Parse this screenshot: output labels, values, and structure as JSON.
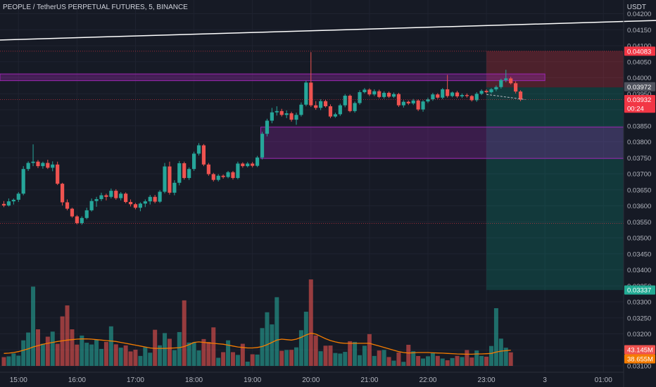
{
  "header": {
    "title": "PEOPLE / TetherUS PERPETUAL FUTURES, 5, BINANCE",
    "currency": "USDT"
  },
  "colors": {
    "background": "#161a25",
    "up": "#26a69a",
    "down": "#ef5350",
    "volume_ma": "#f57c00",
    "zone_purple": "#9c27b0",
    "trendline": "#ffffff",
    "stop_zone": "#f23645",
    "target_zone": "#089981"
  },
  "chart_data": {
    "type": "candlestick",
    "x_axis": {
      "ticks": [
        {
          "label": "15:00",
          "index": 3.0
        },
        {
          "label": "16:00",
          "index": 15.0
        },
        {
          "label": "17:00",
          "index": 27.0
        },
        {
          "label": "18:00",
          "index": 39.0
        },
        {
          "label": "19:00",
          "index": 51.0
        },
        {
          "label": "20:00",
          "index": 63.0
        },
        {
          "label": "21:00",
          "index": 75.0
        },
        {
          "label": "22:00",
          "index": 87.0
        },
        {
          "label": "23:00",
          "index": 99.0
        },
        {
          "label": "3",
          "index": 111.0
        },
        {
          "label": "01:00",
          "index": 123.0
        }
      ]
    },
    "y_axis": {
      "range": [
        0.031,
        0.0421
      ],
      "ticks": [
        "0.04200",
        "0.04150",
        "0.04100",
        "0.04050",
        "0.04000",
        "0.03950",
        "0.03900",
        "0.03850",
        "0.03800",
        "0.03750",
        "0.03700",
        "0.03650",
        "0.03600",
        "0.03550",
        "0.03500",
        "0.03450",
        "0.03400",
        "0.03350",
        "0.03300",
        "0.03250",
        "0.03200",
        "0.03150",
        "0.03100"
      ]
    },
    "candles": [
      {
        "o": 0.03606,
        "h": 0.03615,
        "l": 0.03596,
        "c": 0.03601
      },
      {
        "o": 0.03601,
        "h": 0.03623,
        "l": 0.03598,
        "c": 0.03614
      },
      {
        "o": 0.03614,
        "h": 0.03623,
        "l": 0.03604,
        "c": 0.03619
      },
      {
        "o": 0.03619,
        "h": 0.03643,
        "l": 0.03612,
        "c": 0.03638
      },
      {
        "o": 0.03638,
        "h": 0.03724,
        "l": 0.03633,
        "c": 0.03715
      },
      {
        "o": 0.03715,
        "h": 0.03739,
        "l": 0.03709,
        "c": 0.03734
      },
      {
        "o": 0.03734,
        "h": 0.03792,
        "l": 0.03724,
        "c": 0.03738
      },
      {
        "o": 0.03738,
        "h": 0.03743,
        "l": 0.03718,
        "c": 0.03724
      },
      {
        "o": 0.03724,
        "h": 0.03738,
        "l": 0.03716,
        "c": 0.03734
      },
      {
        "o": 0.03734,
        "h": 0.03744,
        "l": 0.03715,
        "c": 0.03719
      },
      {
        "o": 0.03719,
        "h": 0.03739,
        "l": 0.03708,
        "c": 0.03729
      },
      {
        "o": 0.03729,
        "h": 0.03738,
        "l": 0.03665,
        "c": 0.03669
      },
      {
        "o": 0.03669,
        "h": 0.03672,
        "l": 0.03601,
        "c": 0.03611
      },
      {
        "o": 0.03611,
        "h": 0.0362,
        "l": 0.03586,
        "c": 0.03591
      },
      {
        "o": 0.03591,
        "h": 0.03594,
        "l": 0.03563,
        "c": 0.03567
      },
      {
        "o": 0.03567,
        "h": 0.03571,
        "l": 0.03542,
        "c": 0.03546
      },
      {
        "o": 0.03546,
        "h": 0.03567,
        "l": 0.03541,
        "c": 0.03562
      },
      {
        "o": 0.03562,
        "h": 0.03594,
        "l": 0.03558,
        "c": 0.03586
      },
      {
        "o": 0.03586,
        "h": 0.03623,
        "l": 0.03582,
        "c": 0.03615
      },
      {
        "o": 0.03615,
        "h": 0.03628,
        "l": 0.03597,
        "c": 0.03621
      },
      {
        "o": 0.03621,
        "h": 0.03641,
        "l": 0.03615,
        "c": 0.03633
      },
      {
        "o": 0.03633,
        "h": 0.03638,
        "l": 0.03617,
        "c": 0.03628
      },
      {
        "o": 0.03628,
        "h": 0.03654,
        "l": 0.03623,
        "c": 0.03647
      },
      {
        "o": 0.03647,
        "h": 0.03652,
        "l": 0.03619,
        "c": 0.03624
      },
      {
        "o": 0.03624,
        "h": 0.03643,
        "l": 0.03617,
        "c": 0.03638
      },
      {
        "o": 0.03638,
        "h": 0.03642,
        "l": 0.03608,
        "c": 0.03612
      },
      {
        "o": 0.03612,
        "h": 0.0362,
        "l": 0.03598,
        "c": 0.03605
      },
      {
        "o": 0.03605,
        "h": 0.03609,
        "l": 0.03589,
        "c": 0.03594
      },
      {
        "o": 0.03594,
        "h": 0.03611,
        "l": 0.03583,
        "c": 0.03607
      },
      {
        "o": 0.03607,
        "h": 0.0362,
        "l": 0.03596,
        "c": 0.03614
      },
      {
        "o": 0.03614,
        "h": 0.03634,
        "l": 0.03604,
        "c": 0.03628
      },
      {
        "o": 0.03628,
        "h": 0.03634,
        "l": 0.03608,
        "c": 0.03613
      },
      {
        "o": 0.03613,
        "h": 0.03649,
        "l": 0.03609,
        "c": 0.03644
      },
      {
        "o": 0.03644,
        "h": 0.03734,
        "l": 0.03639,
        "c": 0.03723
      },
      {
        "o": 0.03723,
        "h": 0.03738,
        "l": 0.03635,
        "c": 0.03641
      },
      {
        "o": 0.03641,
        "h": 0.0368,
        "l": 0.03633,
        "c": 0.03672
      },
      {
        "o": 0.03672,
        "h": 0.0374,
        "l": 0.03664,
        "c": 0.03733
      },
      {
        "o": 0.03733,
        "h": 0.03738,
        "l": 0.03682,
        "c": 0.03687
      },
      {
        "o": 0.03687,
        "h": 0.0372,
        "l": 0.03681,
        "c": 0.03715
      },
      {
        "o": 0.03715,
        "h": 0.03769,
        "l": 0.03709,
        "c": 0.03763
      },
      {
        "o": 0.03763,
        "h": 0.03796,
        "l": 0.03757,
        "c": 0.03789
      },
      {
        "o": 0.03789,
        "h": 0.03793,
        "l": 0.03724,
        "c": 0.03729
      },
      {
        "o": 0.03729,
        "h": 0.03734,
        "l": 0.03694,
        "c": 0.03699
      },
      {
        "o": 0.03699,
        "h": 0.03703,
        "l": 0.03676,
        "c": 0.03681
      },
      {
        "o": 0.03681,
        "h": 0.03699,
        "l": 0.03676,
        "c": 0.03694
      },
      {
        "o": 0.03694,
        "h": 0.03698,
        "l": 0.03685,
        "c": 0.0369
      },
      {
        "o": 0.0369,
        "h": 0.03709,
        "l": 0.03686,
        "c": 0.03705
      },
      {
        "o": 0.03705,
        "h": 0.03709,
        "l": 0.03682,
        "c": 0.03687
      },
      {
        "o": 0.03687,
        "h": 0.03738,
        "l": 0.03683,
        "c": 0.03732
      },
      {
        "o": 0.03732,
        "h": 0.03736,
        "l": 0.03719,
        "c": 0.03724
      },
      {
        "o": 0.03724,
        "h": 0.03737,
        "l": 0.0372,
        "c": 0.03732
      },
      {
        "o": 0.03732,
        "h": 0.03737,
        "l": 0.0372,
        "c": 0.03725
      },
      {
        "o": 0.03725,
        "h": 0.03756,
        "l": 0.03721,
        "c": 0.03751
      },
      {
        "o": 0.03751,
        "h": 0.03831,
        "l": 0.03745,
        "c": 0.03825
      },
      {
        "o": 0.03825,
        "h": 0.03872,
        "l": 0.03817,
        "c": 0.03866
      },
      {
        "o": 0.03866,
        "h": 0.03906,
        "l": 0.03858,
        "c": 0.03892
      },
      {
        "o": 0.03892,
        "h": 0.03911,
        "l": 0.03882,
        "c": 0.03896
      },
      {
        "o": 0.03896,
        "h": 0.03903,
        "l": 0.03879,
        "c": 0.03884
      },
      {
        "o": 0.03884,
        "h": 0.03898,
        "l": 0.03874,
        "c": 0.03889
      },
      {
        "o": 0.03889,
        "h": 0.03894,
        "l": 0.03863,
        "c": 0.03869
      },
      {
        "o": 0.03869,
        "h": 0.03891,
        "l": 0.03853,
        "c": 0.03884
      },
      {
        "o": 0.03884,
        "h": 0.03923,
        "l": 0.03879,
        "c": 0.03916
      },
      {
        "o": 0.03916,
        "h": 0.03991,
        "l": 0.03911,
        "c": 0.03985
      },
      {
        "o": 0.03985,
        "h": 0.0408,
        "l": 0.03909,
        "c": 0.03914
      },
      {
        "o": 0.03914,
        "h": 0.03927,
        "l": 0.039,
        "c": 0.03906
      },
      {
        "o": 0.03906,
        "h": 0.03933,
        "l": 0.03899,
        "c": 0.03927
      },
      {
        "o": 0.03927,
        "h": 0.03931,
        "l": 0.03907,
        "c": 0.03911
      },
      {
        "o": 0.03911,
        "h": 0.03917,
        "l": 0.03874,
        "c": 0.03879
      },
      {
        "o": 0.03879,
        "h": 0.03891,
        "l": 0.03875,
        "c": 0.03886
      },
      {
        "o": 0.03886,
        "h": 0.03919,
        "l": 0.03881,
        "c": 0.03914
      },
      {
        "o": 0.03914,
        "h": 0.03949,
        "l": 0.03908,
        "c": 0.03944
      },
      {
        "o": 0.03944,
        "h": 0.03948,
        "l": 0.03892,
        "c": 0.03896
      },
      {
        "o": 0.03896,
        "h": 0.03926,
        "l": 0.03891,
        "c": 0.03921
      },
      {
        "o": 0.03921,
        "h": 0.03961,
        "l": 0.03916,
        "c": 0.03955
      },
      {
        "o": 0.03955,
        "h": 0.03968,
        "l": 0.03951,
        "c": 0.03963
      },
      {
        "o": 0.03963,
        "h": 0.03967,
        "l": 0.03943,
        "c": 0.03948
      },
      {
        "o": 0.03948,
        "h": 0.03964,
        "l": 0.03943,
        "c": 0.03958
      },
      {
        "o": 0.03958,
        "h": 0.03963,
        "l": 0.03936,
        "c": 0.0394
      },
      {
        "o": 0.0394,
        "h": 0.03958,
        "l": 0.03935,
        "c": 0.03953
      },
      {
        "o": 0.03953,
        "h": 0.03957,
        "l": 0.03937,
        "c": 0.03941
      },
      {
        "o": 0.03941,
        "h": 0.03954,
        "l": 0.03937,
        "c": 0.03949
      },
      {
        "o": 0.03949,
        "h": 0.03953,
        "l": 0.03909,
        "c": 0.03914
      },
      {
        "o": 0.03914,
        "h": 0.0393,
        "l": 0.03907,
        "c": 0.03925
      },
      {
        "o": 0.03925,
        "h": 0.03929,
        "l": 0.03915,
        "c": 0.0392
      },
      {
        "o": 0.0392,
        "h": 0.03934,
        "l": 0.03915,
        "c": 0.03929
      },
      {
        "o": 0.03929,
        "h": 0.03933,
        "l": 0.03896,
        "c": 0.03901
      },
      {
        "o": 0.03901,
        "h": 0.0393,
        "l": 0.03894,
        "c": 0.03926
      },
      {
        "o": 0.03926,
        "h": 0.03938,
        "l": 0.03921,
        "c": 0.03933
      },
      {
        "o": 0.03933,
        "h": 0.03953,
        "l": 0.03928,
        "c": 0.03948
      },
      {
        "o": 0.03948,
        "h": 0.03952,
        "l": 0.03934,
        "c": 0.03938
      },
      {
        "o": 0.03938,
        "h": 0.03968,
        "l": 0.03933,
        "c": 0.03964
      },
      {
        "o": 0.03964,
        "h": 0.04009,
        "l": 0.03938,
        "c": 0.03943
      },
      {
        "o": 0.03943,
        "h": 0.03957,
        "l": 0.03939,
        "c": 0.03954
      },
      {
        "o": 0.03954,
        "h": 0.03959,
        "l": 0.03937,
        "c": 0.03942
      },
      {
        "o": 0.03942,
        "h": 0.03951,
        "l": 0.03937,
        "c": 0.03946
      },
      {
        "o": 0.03946,
        "h": 0.03951,
        "l": 0.03938,
        "c": 0.03943
      },
      {
        "o": 0.03943,
        "h": 0.03946,
        "l": 0.03926,
        "c": 0.0393
      },
      {
        "o": 0.0393,
        "h": 0.03955,
        "l": 0.03925,
        "c": 0.0395
      },
      {
        "o": 0.0395,
        "h": 0.03964,
        "l": 0.03946,
        "c": 0.03959
      },
      {
        "o": 0.03959,
        "h": 0.03964,
        "l": 0.03951,
        "c": 0.03955
      },
      {
        "o": 0.03955,
        "h": 0.03968,
        "l": 0.03951,
        "c": 0.03964
      },
      {
        "o": 0.03964,
        "h": 0.03976,
        "l": 0.03958,
        "c": 0.03971
      },
      {
        "o": 0.03971,
        "h": 0.03997,
        "l": 0.03966,
        "c": 0.03993
      },
      {
        "o": 0.03993,
        "h": 0.04025,
        "l": 0.03986,
        "c": 0.03998
      },
      {
        "o": 0.03998,
        "h": 0.04003,
        "l": 0.03979,
        "c": 0.03983
      },
      {
        "o": 0.03983,
        "h": 0.03989,
        "l": 0.03951,
        "c": 0.03957
      },
      {
        "o": 0.03957,
        "h": 0.03961,
        "l": 0.03927,
        "c": 0.03932
      }
    ],
    "volume": [
      0.95,
      1.03,
      1.35,
      1.11,
      2.77,
      3.62,
      8.6,
      3.97,
      2.4,
      3.17,
      3.72,
      2.4,
      5.37,
      6.56,
      3.97,
      2.31,
      3.29,
      2.51,
      2.32,
      2.83,
      1.84,
      2.6,
      4.29,
      2.34,
      1.98,
      2.22,
      1.57,
      1.76,
      1.08,
      2.02,
      1.43,
      3.92,
      2.23,
      3.56,
      2.94,
      1.71,
      3.67,
      7.11,
      2.53,
      2.57,
      1.68,
      2.91,
      2.59,
      4.18,
      0.88,
      1.49,
      2.77,
      1.49,
      1.19,
      2.4,
      0.46,
      1.26,
      1.23,
      4.1,
      5.82,
      4.5,
      7.45,
      1.64,
      1.73,
      1.74,
      2.01,
      3.87,
      5.88,
      9.38,
      3.3,
      1.59,
      2.19,
      2.21,
      1.4,
      1.34,
      1.52,
      2.68,
      2.6,
      1.16,
      2.19,
      3.45,
      1.08,
      1.67,
      1.73,
      0.96,
      0.57,
      1.45,
      0.44,
      2.29,
      1.59,
      1.07,
      0.8,
      1.04,
      1.37,
      1.08,
      0.8,
      0.61,
      0.85,
      1.08,
      0.96,
      1.72,
      0.91,
      1.67,
      1.08,
      1.0,
      2.16,
      6.26,
      2.96,
      1.97,
      1.47
    ],
    "volume_ma": [
      1.35,
      1.38,
      1.45,
      1.55,
      1.7,
      1.85,
      2.05,
      2.2,
      2.35,
      2.45,
      2.55,
      2.65,
      2.72,
      2.8,
      2.85,
      2.9,
      2.92,
      2.93,
      2.9,
      2.85,
      2.8,
      2.75,
      2.7,
      2.65,
      2.55,
      2.45,
      2.35,
      2.25,
      2.15,
      2.05,
      1.95,
      1.9,
      1.9,
      1.9,
      1.92,
      1.95,
      1.98,
      2.1,
      2.3,
      2.55,
      2.6,
      2.55,
      2.5,
      2.45,
      2.4,
      2.35,
      2.25,
      2.15,
      2.05,
      2.0,
      1.95,
      1.95,
      2.0,
      2.1,
      2.3,
      2.55,
      2.8,
      2.9,
      2.85,
      2.8,
      2.9,
      3.1,
      3.35,
      3.55,
      3.45,
      3.2,
      2.95,
      2.75,
      2.6,
      2.5,
      2.45,
      2.45,
      2.45,
      2.45,
      2.45,
      2.45,
      2.3,
      2.15,
      2.0,
      1.85,
      1.7,
      1.55,
      1.45,
      1.4,
      1.42,
      1.45,
      1.45,
      1.45,
      1.42,
      1.4,
      1.38,
      1.35,
      1.33,
      1.3,
      1.28,
      1.27,
      1.27,
      1.3,
      1.3,
      1.32,
      1.35,
      1.5,
      1.6,
      1.65,
      1.7
    ],
    "volume_labels": [
      "43.145M",
      "38.655M"
    ],
    "drawings": {
      "trendline": {
        "start": {
          "index": -1.0,
          "price": 0.04118
        },
        "end": {
          "index": 134.0,
          "price": 0.04179
        }
      },
      "top_zone": {
        "start_index": -1.0,
        "end_index": 111.0,
        "top": 0.04012,
        "bottom": 0.03991
      },
      "middle_zone": {
        "start_index": 52.7,
        "end_index": 134.0,
        "top": 0.03846,
        "bottom": 0.03748
      },
      "stop_zone": {
        "start_index": 99.0,
        "end_index": 134.0,
        "top": 0.04083,
        "bottom": 0.0397
      },
      "target_zone": {
        "start_index": 99.0,
        "end_index": 134.0,
        "top": 0.0397,
        "bottom": 0.03337
      },
      "dashed_line": {
        "start": {
          "index": 99.0,
          "price": 0.03948
        },
        "end": {
          "index": 107.0,
          "price": 0.03932
        }
      },
      "dotted_levels": [
        0.04083,
        0.03932,
        0.03545
      ]
    },
    "price_labels": [
      {
        "text": "0.04083",
        "price": 0.04083,
        "color": "#f23645"
      },
      {
        "text": "0.03972",
        "price": 0.03972,
        "color": "#50535e"
      },
      {
        "text": "0.03932",
        "price": 0.03932,
        "color": "#f23645"
      },
      {
        "text": "00:24",
        "price": 0.03905,
        "color": "#f23645"
      },
      {
        "text": "0.03337",
        "price": 0.03337,
        "color": "#22ab94"
      }
    ]
  }
}
